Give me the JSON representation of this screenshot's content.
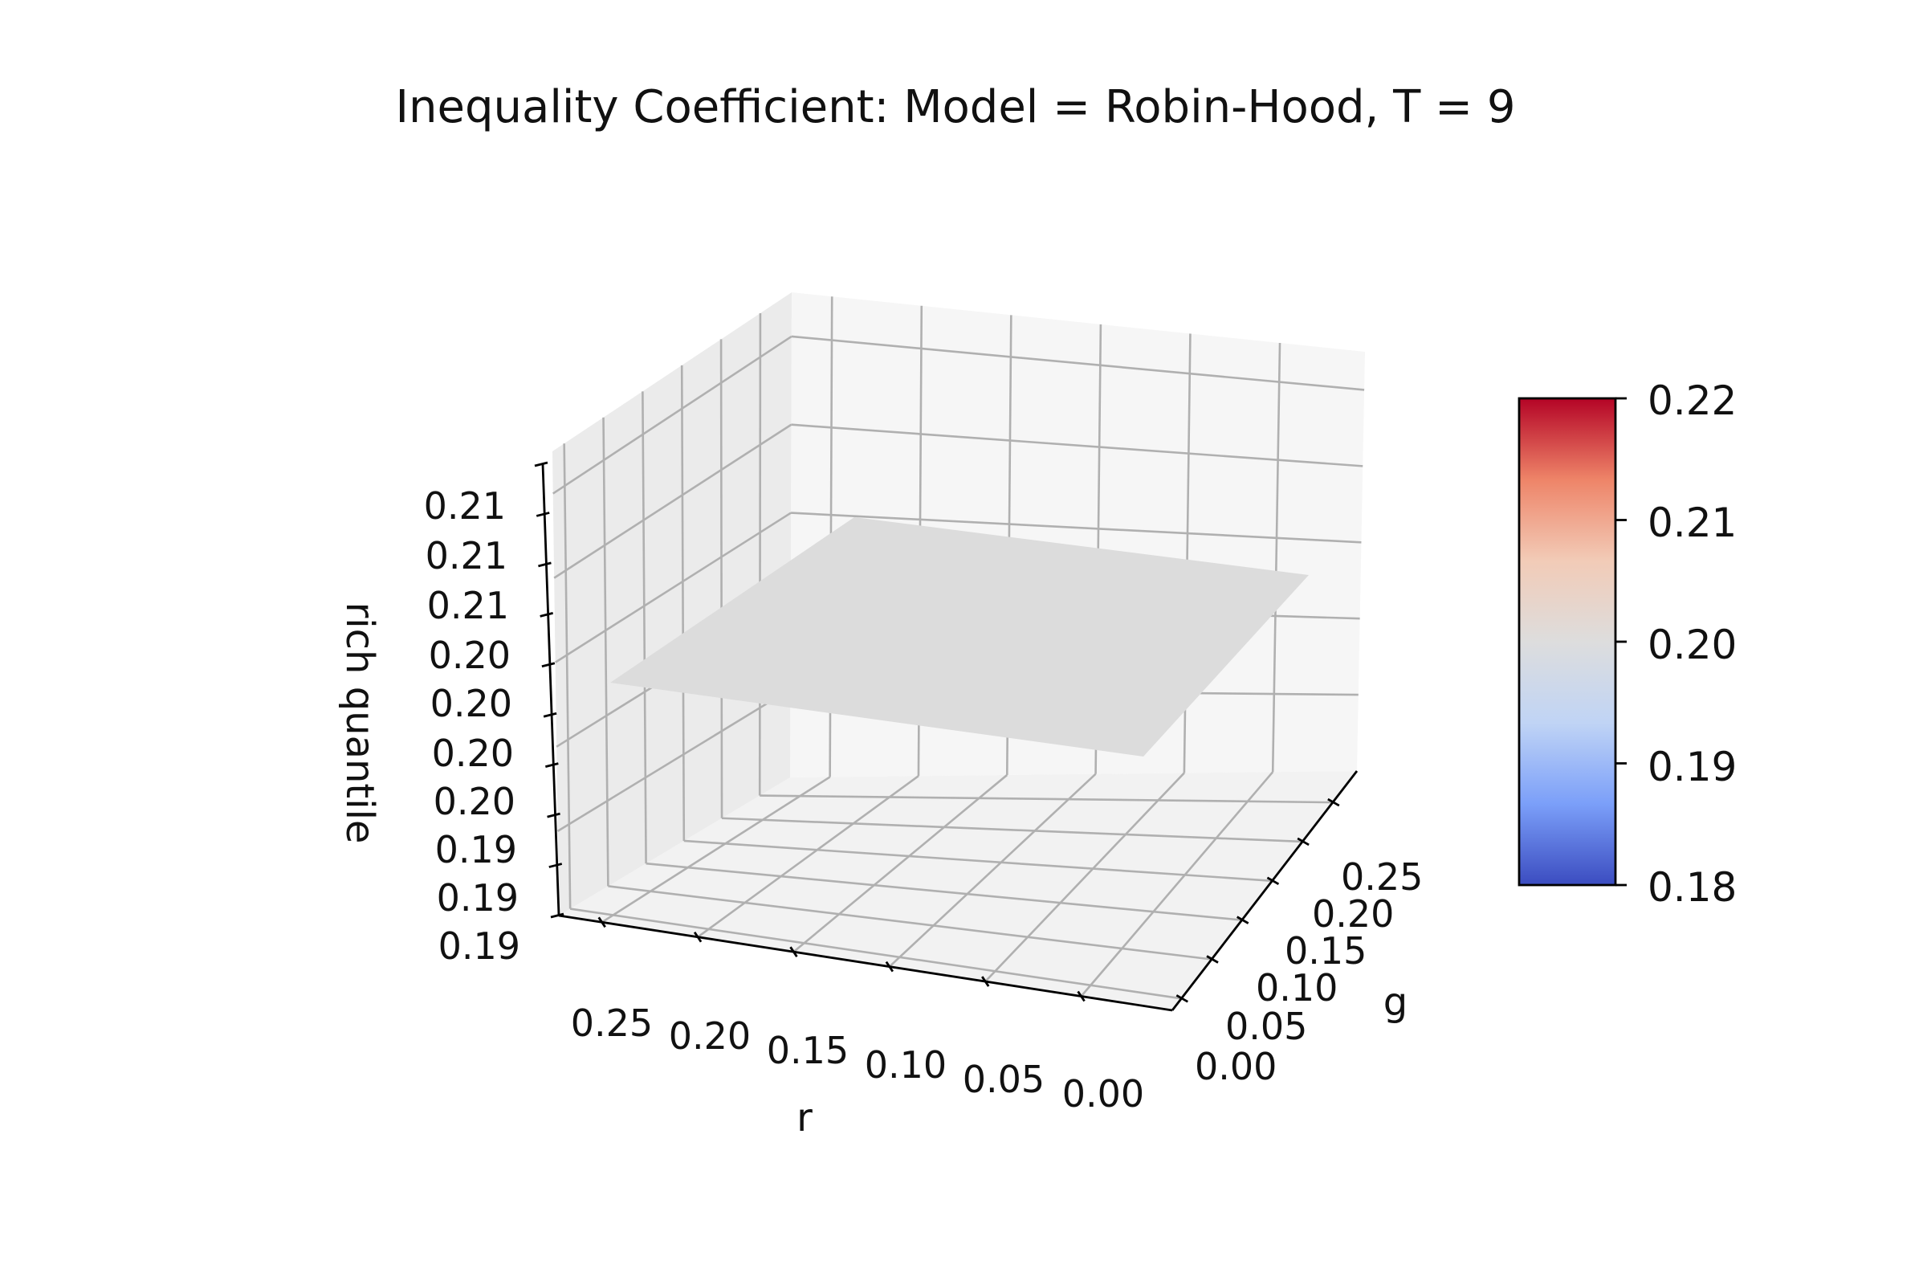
{
  "chart_data": {
    "type": "surface",
    "title": "Inequality Coefficient: Model = Robin-Hood, T = 9",
    "xlabel": "r",
    "ylabel": "g",
    "zlabel": "rich quantile",
    "x_ticks": [
      "0.25",
      "0.20",
      "0.15",
      "0.10",
      "0.05",
      "0.00"
    ],
    "y_ticks": [
      "0.25",
      "0.20",
      "0.15",
      "0.10",
      "0.05",
      "0.00"
    ],
    "z_ticks": [
      "0.21",
      "0.21",
      "0.21",
      "0.20",
      "0.20",
      "0.20",
      "0.20",
      "0.19",
      "0.19",
      "0.19"
    ],
    "xlim": [
      0.0,
      0.3
    ],
    "ylim": [
      0.0,
      0.3
    ],
    "z_value": 0.2,
    "surface": {
      "r": [
        0.0,
        0.25
      ],
      "g": [
        0.0,
        0.25
      ],
      "z": [
        [
          0.2,
          0.2
        ],
        [
          0.2,
          0.2
        ]
      ]
    },
    "colorbar": {
      "colormap": "coolwarm",
      "min": 0.18,
      "max": 0.22,
      "ticks": [
        "0.22",
        "0.21",
        "0.20",
        "0.19",
        "0.18"
      ],
      "colors": [
        "#3b4cc0",
        "#7b9ff9",
        "#c0d4f5",
        "#dddddd",
        "#f2cbb7",
        "#ee8468",
        "#b40426"
      ]
    },
    "surface_color": "#dcdcdc"
  }
}
